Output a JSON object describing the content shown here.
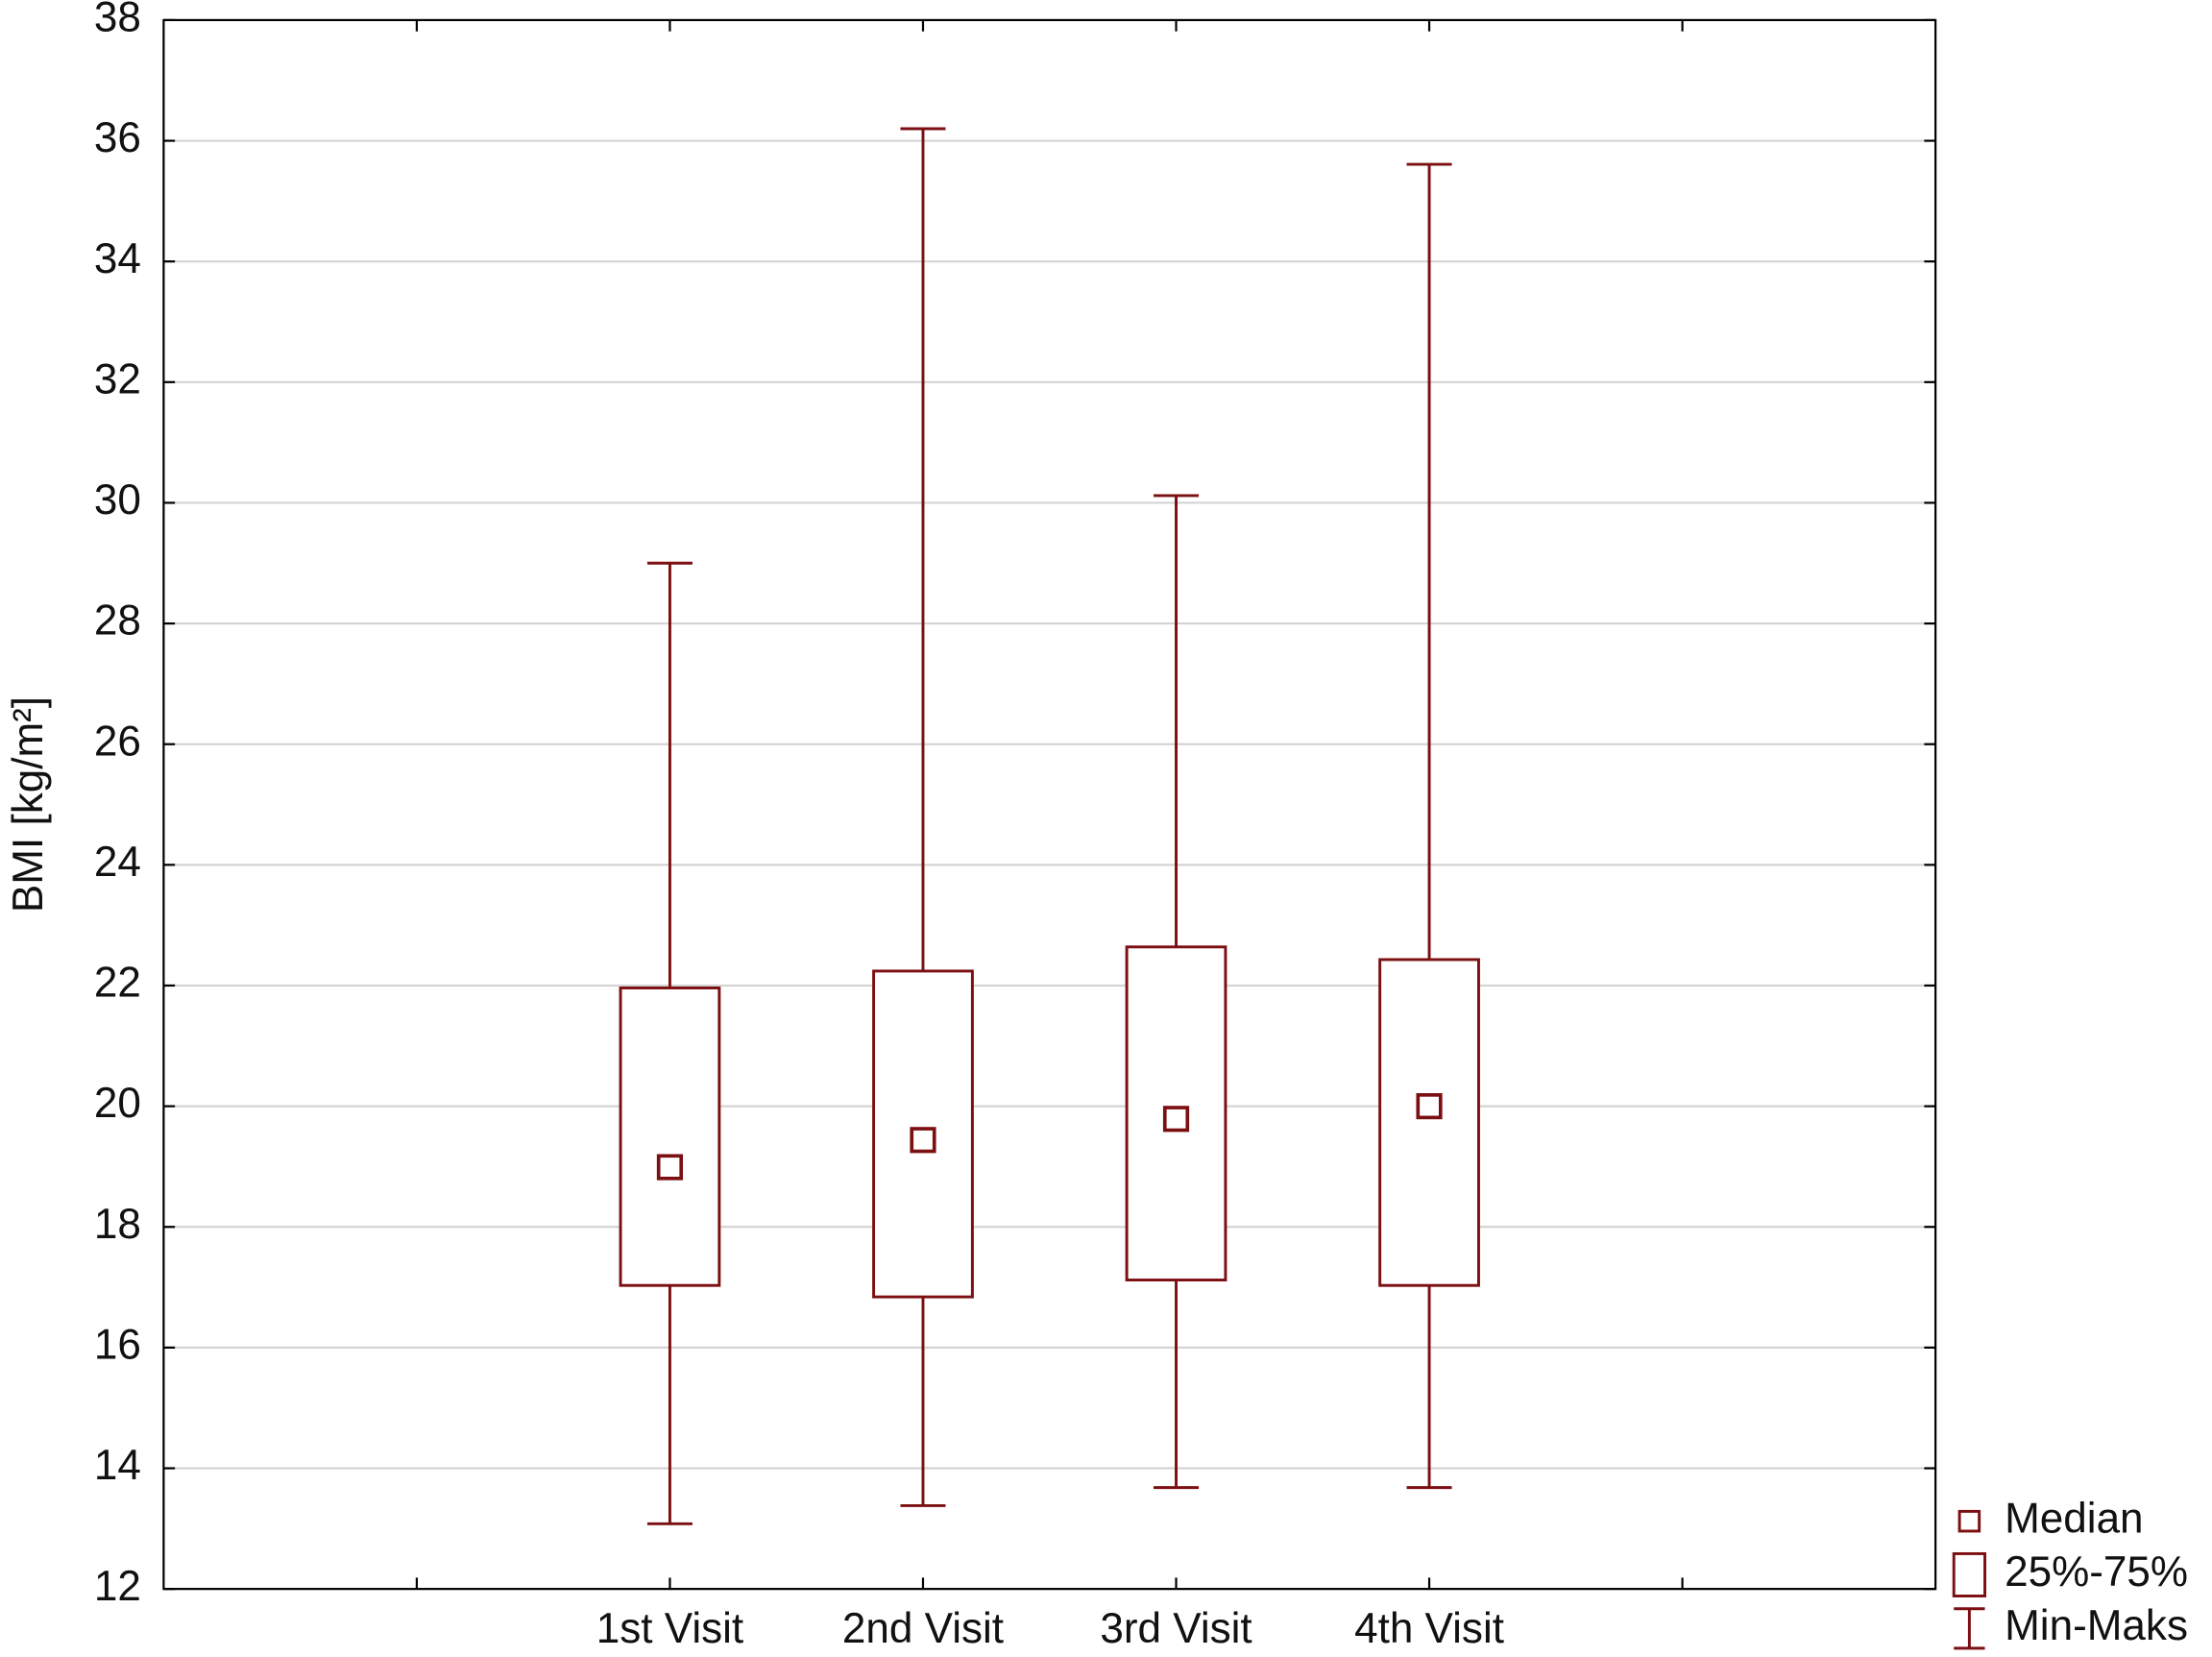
{
  "chart_data": {
    "type": "box",
    "y_label": "BMI [kg/m²]",
    "categories": [
      null,
      "1st Visit",
      "2nd Visit",
      "3rd Visit",
      "4th Visit",
      null
    ],
    "min": [
      null,
      13.08,
      13.38,
      13.68,
      13.68,
      null
    ],
    "q1": [
      null,
      17.03,
      16.84,
      17.12,
      17.03,
      null
    ],
    "median": [
      null,
      18.99,
      19.44,
      19.79,
      20.0,
      null
    ],
    "q3": [
      null,
      21.96,
      22.24,
      22.64,
      22.43,
      null
    ],
    "max": [
      null,
      29.0,
      36.2,
      30.12,
      35.61,
      null
    ],
    "legend": [
      "Median",
      "25%-75%",
      "Min-Maks"
    ],
    "color": "#7b0f12",
    "ylim": [
      12,
      38
    ],
    "yticks": [
      12,
      14,
      16,
      18,
      20,
      22,
      24,
      26,
      28,
      30,
      32,
      34,
      36,
      38
    ],
    "grid": true
  }
}
